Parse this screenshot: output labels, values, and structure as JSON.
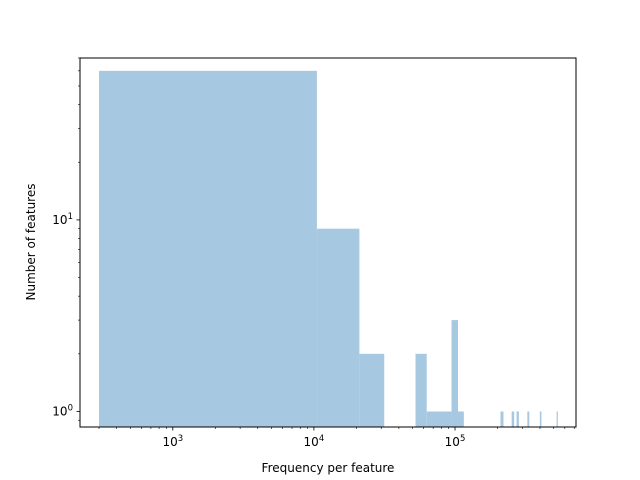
{
  "chart_data": {
    "type": "bar",
    "xlabel": "Frequency per feature",
    "ylabel": "Number of features",
    "xscale": "log",
    "yscale": "log",
    "xlim": [
      220,
      720000
    ],
    "ylim": [
      0.83,
      70
    ],
    "bar_color": "#a6c8e0",
    "x_ticks": [
      {
        "value": 1000,
        "base": "10",
        "exp": "3"
      },
      {
        "value": 10000,
        "base": "10",
        "exp": "4"
      },
      {
        "value": 100000,
        "base": "10",
        "exp": "5"
      }
    ],
    "y_ticks": [
      {
        "value": 1,
        "base": "10",
        "exp": "0"
      },
      {
        "value": 10,
        "base": "10",
        "exp": "1"
      }
    ],
    "bins": [
      {
        "x0": 300,
        "x1": 10500,
        "count": 60
      },
      {
        "x0": 10500,
        "x1": 21000,
        "count": 9
      },
      {
        "x0": 21000,
        "x1": 31500,
        "count": 2
      },
      {
        "x0": 52500,
        "x1": 63000,
        "count": 2
      },
      {
        "x0": 63000,
        "x1": 94500,
        "count": 1
      },
      {
        "x0": 94500,
        "x1": 105000,
        "count": 3
      },
      {
        "x0": 105000,
        "x1": 115500,
        "count": 1
      },
      {
        "x0": 210000,
        "x1": 220500,
        "count": 1
      },
      {
        "x0": 252000,
        "x1": 262500,
        "count": 1
      },
      {
        "x0": 273000,
        "x1": 283500,
        "count": 1
      },
      {
        "x0": 325500,
        "x1": 336000,
        "count": 1
      },
      {
        "x0": 399000,
        "x1": 409500,
        "count": 1
      },
      {
        "x0": 525000,
        "x1": 535500,
        "count": 1
      }
    ]
  }
}
